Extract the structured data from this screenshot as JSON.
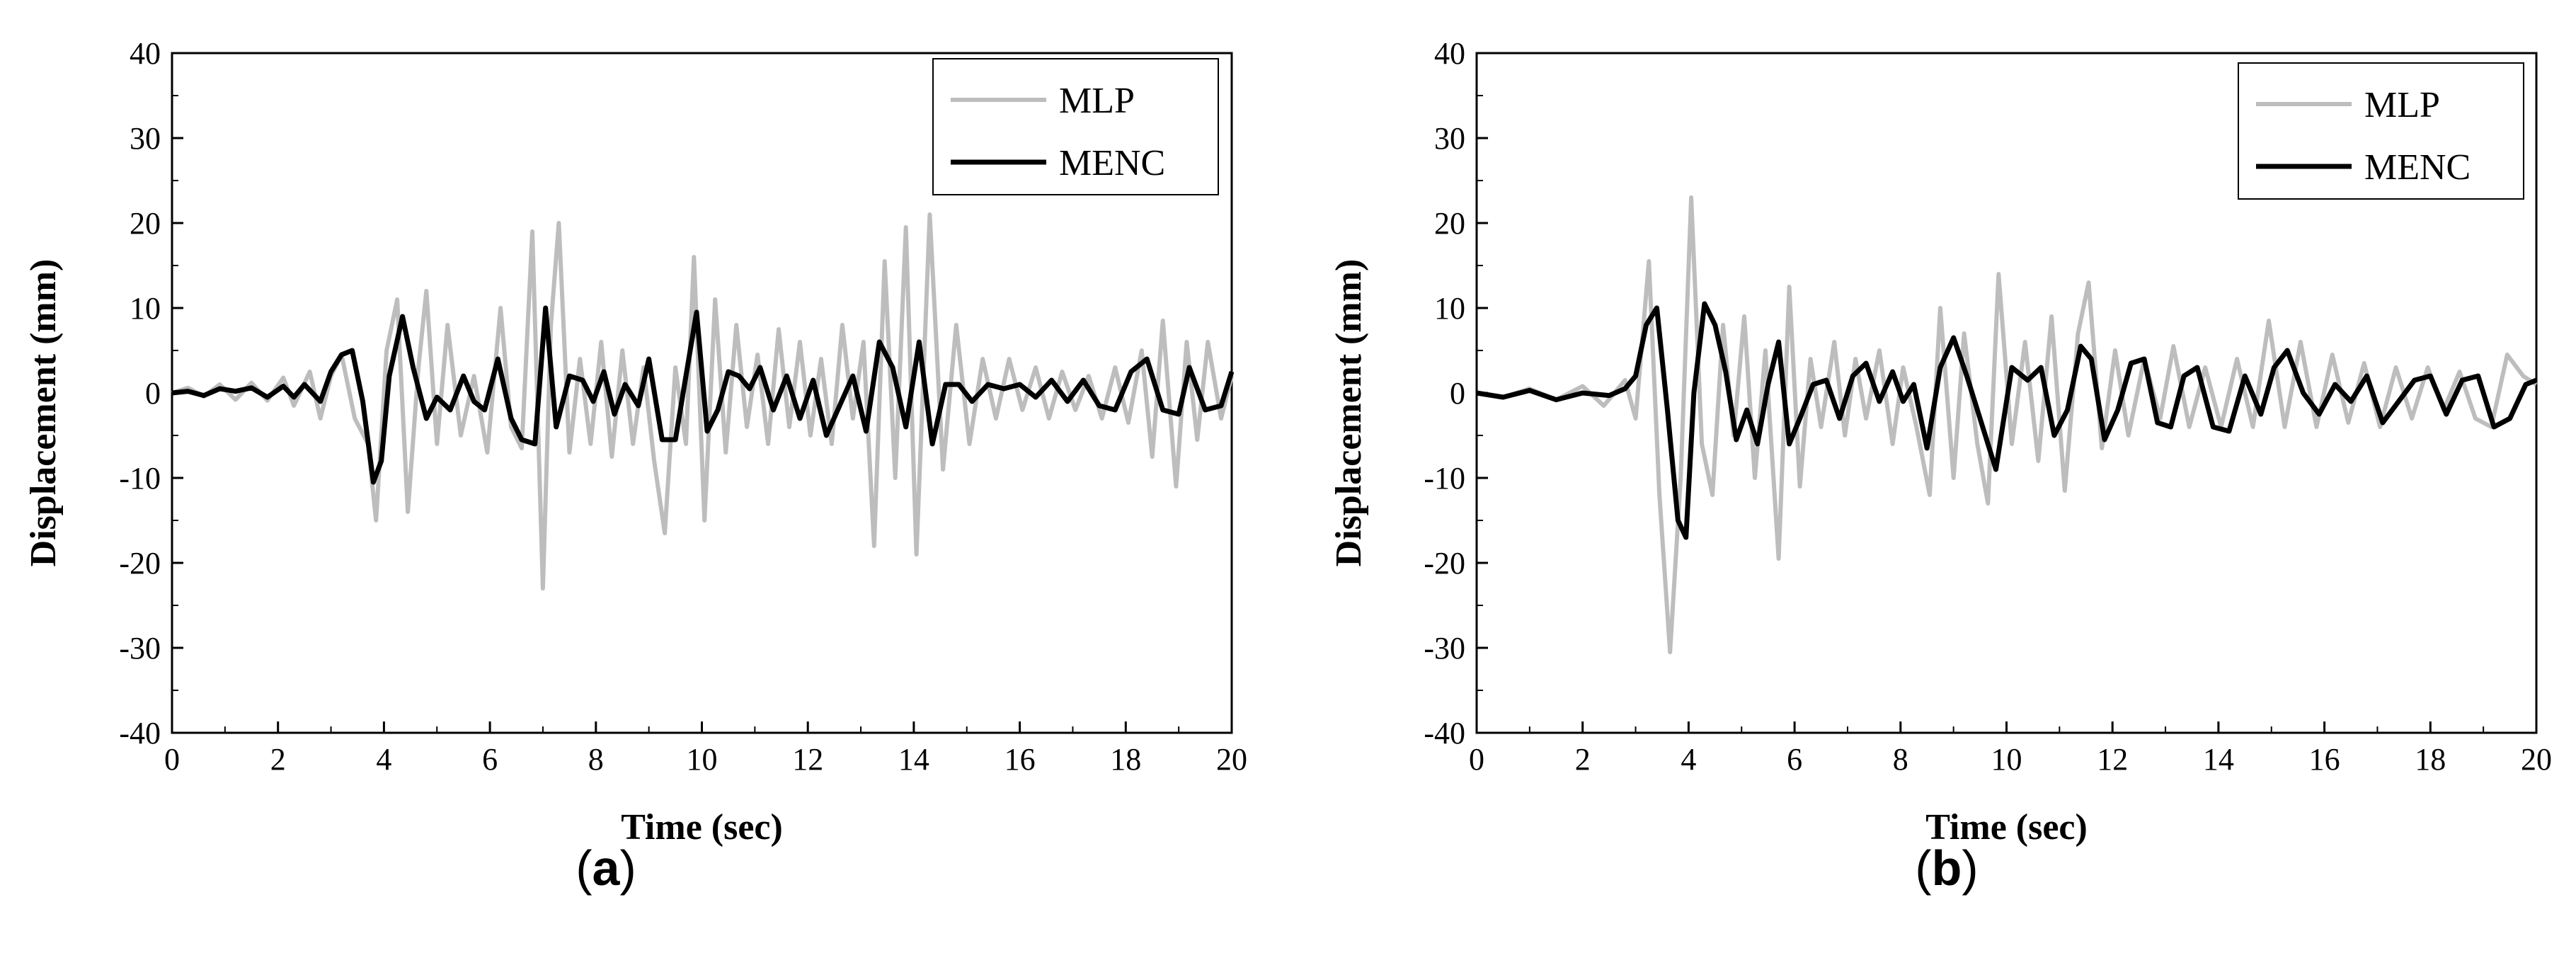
{
  "chart_data": [
    {
      "type": "line",
      "panel_label": "a",
      "xlabel": "Time (sec)",
      "ylabel": "Displacement (mm)",
      "xlim": [
        0,
        20
      ],
      "ylim": [
        -40,
        40
      ],
      "xticks": [
        0,
        2,
        4,
        6,
        8,
        10,
        12,
        14,
        16,
        18,
        20
      ],
      "yticks": [
        -40,
        -30,
        -20,
        -10,
        0,
        10,
        20,
        30,
        40
      ],
      "legend_position": "top-right",
      "grid": false,
      "series": [
        {
          "name": "MLP",
          "color": "#bdbdbd",
          "x": [
            0,
            0.3,
            0.6,
            0.9,
            1.2,
            1.5,
            1.8,
            2.1,
            2.3,
            2.6,
            2.8,
            3.0,
            3.2,
            3.45,
            3.7,
            3.85,
            4.05,
            4.25,
            4.45,
            4.65,
            4.8,
            5.0,
            5.2,
            5.45,
            5.7,
            5.95,
            6.2,
            6.4,
            6.6,
            6.8,
            7.0,
            7.15,
            7.3,
            7.5,
            7.7,
            7.9,
            8.1,
            8.3,
            8.5,
            8.7,
            8.9,
            9.1,
            9.3,
            9.5,
            9.7,
            9.85,
            10.05,
            10.25,
            10.45,
            10.65,
            10.85,
            11.05,
            11.25,
            11.45,
            11.65,
            11.85,
            12.05,
            12.25,
            12.45,
            12.65,
            12.85,
            13.05,
            13.25,
            13.45,
            13.65,
            13.85,
            14.05,
            14.3,
            14.55,
            14.8,
            15.05,
            15.3,
            15.55,
            15.8,
            16.05,
            16.3,
            16.55,
            16.8,
            17.05,
            17.3,
            17.55,
            17.8,
            18.05,
            18.3,
            18.5,
            18.7,
            18.95,
            19.15,
            19.35,
            19.55,
            19.8,
            20.0
          ],
          "y": [
            0,
            0.6,
            -0.4,
            1.0,
            -0.8,
            1.2,
            -0.9,
            1.8,
            -1.5,
            2.5,
            -3.0,
            2.0,
            4.5,
            -3.0,
            -6.0,
            -15.0,
            5.0,
            11.0,
            -14.0,
            3.0,
            12.0,
            -6.0,
            8.0,
            -5.0,
            2.0,
            -7.0,
            10.0,
            -4.0,
            -6.5,
            19.0,
            -23.0,
            8.0,
            20.0,
            -7.0,
            4.0,
            -6.0,
            6.0,
            -7.5,
            5.0,
            -6.0,
            3.0,
            -8.0,
            -16.5,
            3.0,
            -6.0,
            16.0,
            -15.0,
            11.0,
            -7.0,
            8.0,
            -4.0,
            4.5,
            -6.0,
            7.5,
            -4.0,
            6.0,
            -5.0,
            4.0,
            -6.0,
            8.0,
            -3.0,
            6.0,
            -18.0,
            15.5,
            -10.0,
            19.5,
            -19.0,
            21.0,
            -9.0,
            8.0,
            -6.0,
            4.0,
            -3.0,
            4.0,
            -2.0,
            3.0,
            -3.0,
            2.5,
            -2.0,
            2.0,
            -3.0,
            3.0,
            -3.5,
            5.0,
            -7.5,
            8.5,
            -11.0,
            6.0,
            -5.5,
            6.0,
            -3.0,
            2.0
          ]
        },
        {
          "name": "MENC",
          "color": "#000000",
          "x": [
            0,
            0.3,
            0.6,
            0.9,
            1.2,
            1.5,
            1.8,
            2.1,
            2.3,
            2.5,
            2.8,
            3.0,
            3.2,
            3.4,
            3.6,
            3.8,
            3.95,
            4.1,
            4.35,
            4.55,
            4.8,
            5.0,
            5.25,
            5.5,
            5.7,
            5.9,
            6.15,
            6.4,
            6.6,
            6.85,
            7.05,
            7.25,
            7.5,
            7.75,
            7.95,
            8.15,
            8.35,
            8.55,
            8.8,
            9.0,
            9.25,
            9.5,
            9.7,
            9.9,
            10.1,
            10.3,
            10.5,
            10.7,
            10.9,
            11.1,
            11.35,
            11.6,
            11.85,
            12.1,
            12.35,
            12.6,
            12.85,
            13.1,
            13.35,
            13.6,
            13.85,
            14.1,
            14.35,
            14.6,
            14.85,
            15.1,
            15.4,
            15.7,
            16.0,
            16.3,
            16.6,
            16.9,
            17.2,
            17.5,
            17.8,
            18.1,
            18.4,
            18.7,
            19.0,
            19.2,
            19.5,
            19.8,
            20.0
          ],
          "y": [
            0,
            0.2,
            -0.3,
            0.5,
            0.2,
            0.6,
            -0.5,
            0.8,
            -0.5,
            1.0,
            -1.0,
            2.5,
            4.5,
            5.0,
            -1.0,
            -10.5,
            -8.0,
            2.0,
            9.0,
            3.0,
            -3.0,
            -0.5,
            -2.0,
            2.0,
            -1.0,
            -2.0,
            4.0,
            -3.0,
            -5.5,
            -6.0,
            10.0,
            -4.0,
            2.0,
            1.5,
            -1.0,
            2.5,
            -2.5,
            1.0,
            -1.5,
            4.0,
            -5.5,
            -5.5,
            2.0,
            9.5,
            -4.5,
            -2.0,
            2.5,
            2.0,
            0.5,
            3.0,
            -2.0,
            2.0,
            -3.0,
            1.5,
            -5.0,
            -1.5,
            2.0,
            -4.5,
            6.0,
            3.0,
            -4.0,
            6.0,
            -6.0,
            1.0,
            1.0,
            -1.0,
            1.0,
            0.5,
            1.0,
            -0.5,
            1.5,
            -1.0,
            1.5,
            -1.5,
            -2.0,
            2.5,
            4.0,
            -2.0,
            -2.5,
            3.0,
            -2.0,
            -1.5,
            2.5
          ]
        }
      ]
    },
    {
      "type": "line",
      "panel_label": "b",
      "xlabel": "Time (sec)",
      "ylabel": "Displacement (mm)",
      "xlim": [
        0,
        20
      ],
      "ylim": [
        -40,
        40
      ],
      "xticks": [
        0,
        2,
        4,
        6,
        8,
        10,
        12,
        14,
        16,
        18,
        20
      ],
      "yticks": [
        -40,
        -30,
        -20,
        -10,
        0,
        10,
        20,
        30,
        40
      ],
      "legend_position": "top-right",
      "grid": false,
      "series": [
        {
          "name": "MLP",
          "color": "#bdbdbd",
          "x": [
            0,
            0.5,
            1.0,
            1.5,
            2.0,
            2.4,
            2.8,
            3.0,
            3.25,
            3.45,
            3.65,
            3.85,
            4.05,
            4.25,
            4.45,
            4.65,
            4.85,
            5.05,
            5.25,
            5.45,
            5.7,
            5.9,
            6.1,
            6.3,
            6.5,
            6.75,
            6.95,
            7.15,
            7.35,
            7.6,
            7.85,
            8.05,
            8.3,
            8.55,
            8.75,
            9.0,
            9.2,
            9.45,
            9.65,
            9.85,
            10.1,
            10.35,
            10.6,
            10.85,
            11.1,
            11.35,
            11.55,
            11.8,
            12.05,
            12.3,
            12.6,
            12.9,
            13.15,
            13.45,
            13.75,
            14.05,
            14.35,
            14.65,
            14.95,
            15.25,
            15.55,
            15.85,
            16.15,
            16.45,
            16.75,
            17.05,
            17.35,
            17.65,
            17.95,
            18.25,
            18.55,
            18.85,
            19.15,
            19.45,
            19.75,
            20.0
          ],
          "y": [
            0,
            -0.5,
            0.5,
            -0.8,
            0.8,
            -1.5,
            1.5,
            -3.0,
            15.5,
            -12.0,
            -30.5,
            -10.0,
            23.0,
            -6.0,
            -12.0,
            8.0,
            -5.0,
            9.0,
            -10.0,
            5.0,
            -19.5,
            12.5,
            -11.0,
            4.0,
            -4.0,
            6.0,
            -5.0,
            4.0,
            -3.0,
            5.0,
            -6.0,
            3.0,
            -4.0,
            -12.0,
            10.0,
            -10.0,
            7.0,
            -6.0,
            -13.0,
            14.0,
            -6.0,
            6.0,
            -8.0,
            9.0,
            -11.5,
            7.0,
            13.0,
            -6.5,
            5.0,
            -5.0,
            4.0,
            -3.0,
            5.5,
            -4.0,
            3.0,
            -4.0,
            4.0,
            -4.0,
            8.5,
            -4.0,
            6.0,
            -4.0,
            4.5,
            -3.5,
            3.5,
            -4.0,
            3.0,
            -3.0,
            3.0,
            -2.0,
            2.5,
            -3.0,
            -4.0,
            4.5,
            2.0,
            1.0
          ]
        },
        {
          "name": "MENC",
          "color": "#000000",
          "x": [
            0,
            0.5,
            1.0,
            1.5,
            2.0,
            2.5,
            2.8,
            3.0,
            3.2,
            3.4,
            3.6,
            3.8,
            3.95,
            4.1,
            4.3,
            4.5,
            4.7,
            4.9,
            5.1,
            5.3,
            5.5,
            5.7,
            5.9,
            6.1,
            6.35,
            6.6,
            6.85,
            7.1,
            7.35,
            7.6,
            7.85,
            8.05,
            8.25,
            8.5,
            8.75,
            9.0,
            9.25,
            9.5,
            9.8,
            10.1,
            10.4,
            10.65,
            10.9,
            11.15,
            11.4,
            11.6,
            11.85,
            12.1,
            12.35,
            12.6,
            12.85,
            13.1,
            13.35,
            13.6,
            13.9,
            14.2,
            14.5,
            14.8,
            15.05,
            15.3,
            15.6,
            15.9,
            16.2,
            16.5,
            16.8,
            17.1,
            17.4,
            17.7,
            18.0,
            18.3,
            18.6,
            18.9,
            19.2,
            19.5,
            19.8,
            20.0
          ],
          "y": [
            0,
            -0.5,
            0.3,
            -0.8,
            0.0,
            -0.3,
            0.5,
            2.0,
            8.0,
            10.0,
            -2.0,
            -15.0,
            -17.0,
            0.0,
            10.5,
            8.0,
            2.5,
            -5.5,
            -2.0,
            -6.0,
            1.0,
            6.0,
            -6.0,
            -3.0,
            1.0,
            1.5,
            -3.0,
            2.0,
            3.5,
            -1.0,
            2.5,
            -1.0,
            1.0,
            -6.5,
            3.0,
            6.5,
            2.0,
            -3.0,
            -9.0,
            3.0,
            1.5,
            3.0,
            -5.0,
            -2.0,
            5.5,
            4.0,
            -5.5,
            -2.0,
            3.5,
            4.0,
            -3.5,
            -4.0,
            2.0,
            3.0,
            -4.0,
            -4.5,
            2.0,
            -2.5,
            3.0,
            5.0,
            0.0,
            -2.5,
            1.0,
            -1.0,
            2.0,
            -3.5,
            -1.0,
            1.5,
            2.0,
            -2.5,
            1.5,
            2.0,
            -4.0,
            -3.0,
            1.0,
            1.5
          ]
        }
      ]
    }
  ]
}
